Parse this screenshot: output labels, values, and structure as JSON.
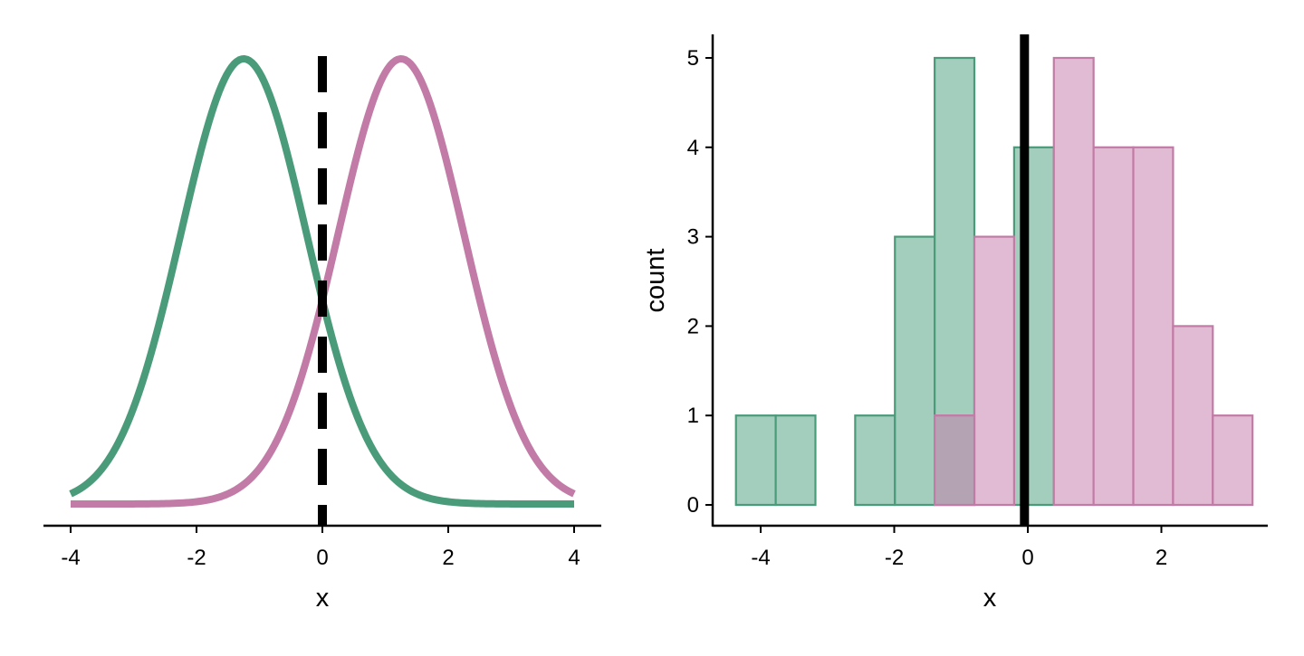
{
  "colors": {
    "green": "#4a9b7a",
    "green_fill": "#a3cebd",
    "pink": "#c27ba6",
    "pink_fill": "#e1bbd3",
    "overlap_fill": "#b3a3b3",
    "axis": "#000000",
    "reference_line": "#000000"
  },
  "chart_data": [
    {
      "type": "line",
      "title": "",
      "xlabel": "x",
      "ylabel": "",
      "xlim": [
        -4,
        4
      ],
      "x_ticks": [
        "-4",
        "-2",
        "0",
        "2",
        "4"
      ],
      "y_ticks_shown": false,
      "grid": false,
      "legend": "none",
      "series": [
        {
          "name": "green density",
          "color_key": "green",
          "distribution": "normal",
          "mean": -1.25,
          "sd": 1
        },
        {
          "name": "pink density",
          "color_key": "pink",
          "distribution": "normal",
          "mean": 1.25,
          "sd": 1
        }
      ],
      "reference_line": {
        "x": 0,
        "style": "dashed"
      }
    },
    {
      "type": "bar",
      "subtype": "histogram",
      "title": "",
      "xlabel": "x",
      "ylabel": "count",
      "xlim": [
        -4.7,
        3.7
      ],
      "ylim": [
        -0.25,
        5.25
      ],
      "x_ticks": [
        "-4",
        "-2",
        "0",
        "2"
      ],
      "y_ticks": [
        "0",
        "1",
        "2",
        "3",
        "4",
        "5"
      ],
      "grid": false,
      "legend": "none",
      "bin_edges": [
        -4.37,
        -3.77,
        -3.17,
        -2.57,
        -1.97,
        -1.37,
        -0.77,
        -0.17,
        0.43,
        1.03,
        1.63,
        2.23,
        2.83,
        3.43
      ],
      "bins_start": -4.37,
      "bin_width": 0.595,
      "series": [
        {
          "name": "green",
          "color_key": "green",
          "counts": [
            1,
            1,
            0,
            1,
            3,
            5,
            0,
            4,
            0,
            0,
            0,
            0,
            0
          ]
        },
        {
          "name": "pink",
          "color_key": "pink",
          "counts": [
            0,
            0,
            0,
            0,
            0,
            1,
            3,
            0,
            5,
            4,
            4,
            2,
            1
          ]
        }
      ],
      "reference_line": {
        "x": -0.05,
        "style": "solid-with-dash-overlay"
      }
    }
  ]
}
